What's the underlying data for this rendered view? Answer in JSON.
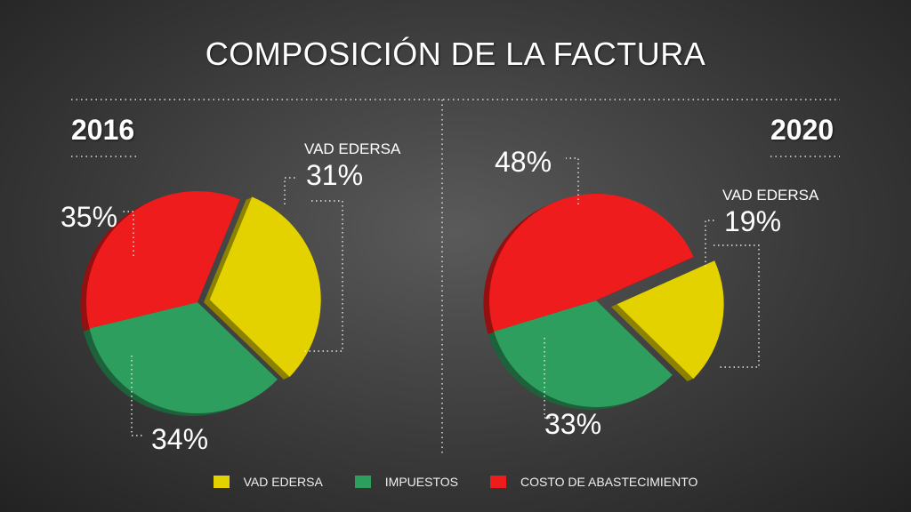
{
  "title": "COMPOSICIÓN DE LA FACTURA",
  "legend": [
    {
      "label": "VAD EDERSA",
      "color": "#e3d200"
    },
    {
      "label": "IMPUESTOS",
      "color": "#2e9e5e"
    },
    {
      "label": "COSTO DE ABASTECIMIENTO",
      "color": "#ee1c1c"
    }
  ],
  "chart_data": [
    {
      "type": "pie",
      "title": "2016",
      "categories": [
        "VAD EDERSA",
        "IMPUESTOS",
        "COSTO DE ABASTECIMIENTO"
      ],
      "values": [
        31,
        34,
        35
      ],
      "labels": [
        "31%",
        "34%",
        "35%"
      ],
      "slice_labels": [
        "VAD EDERSA",
        "",
        ""
      ],
      "colors": [
        "#e3d200",
        "#2e9e5e",
        "#ee1c1c"
      ]
    },
    {
      "type": "pie",
      "title": "2020",
      "categories": [
        "VAD EDERSA",
        "IMPUESTOS",
        "COSTO DE ABASTECIMIENTO"
      ],
      "values": [
        19,
        33,
        48
      ],
      "labels": [
        "19%",
        "33%",
        "48%"
      ],
      "slice_labels": [
        "VAD EDERSA",
        "",
        ""
      ],
      "colors": [
        "#e3d200",
        "#2e9e5e",
        "#ee1c1c"
      ]
    }
  ]
}
